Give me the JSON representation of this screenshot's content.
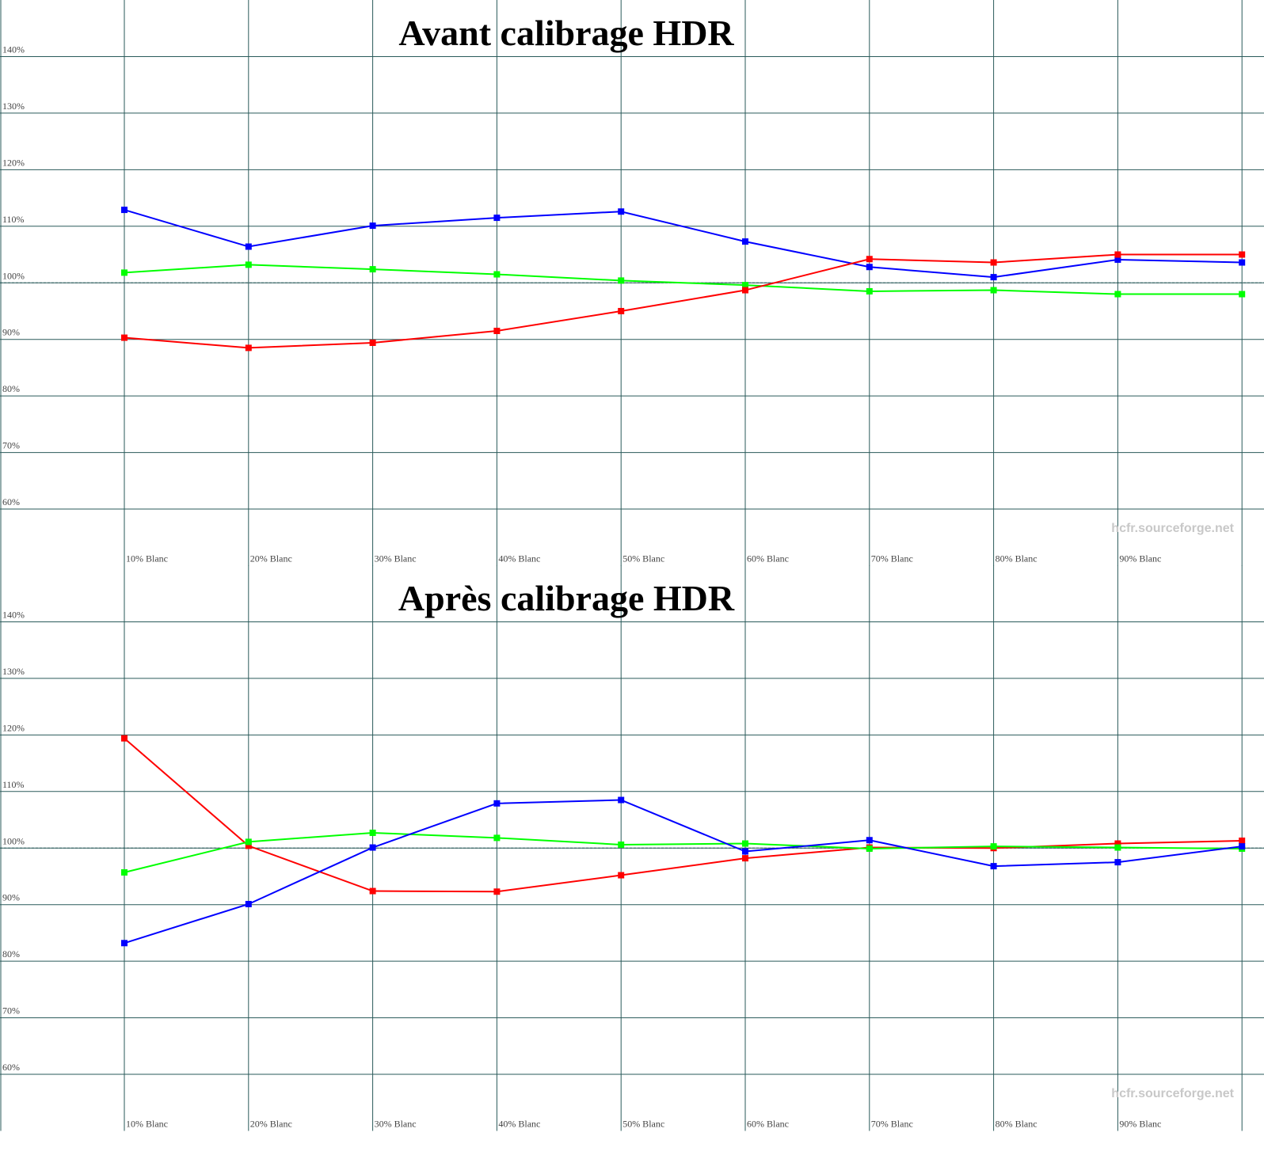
{
  "chart_data": [
    {
      "type": "line",
      "title": "Avant calibrage HDR",
      "watermark": "hcfr.sourceforge.net",
      "categories": [
        "10% Blanc",
        "20% Blanc",
        "30% Blanc",
        "40% Blanc",
        "50% Blanc",
        "60% Blanc",
        "70% Blanc",
        "80% Blanc",
        "90% Blanc",
        null
      ],
      "ylim": [
        50,
        150
      ],
      "yticks": [
        {
          "value": 60,
          "label": "60%"
        },
        {
          "value": 70,
          "label": "70%"
        },
        {
          "value": 80,
          "label": "80%"
        },
        {
          "value": 90,
          "label": "90%"
        },
        {
          "value": 100,
          "label": "100%"
        },
        {
          "value": 110,
          "label": "110%"
        },
        {
          "value": 120,
          "label": "120%"
        },
        {
          "value": 130,
          "label": "130%"
        },
        {
          "value": 140,
          "label": "140%"
        }
      ],
      "reference_line": 100,
      "grid": true,
      "series": [
        {
          "color": "#0000ff",
          "values": [
            112.9,
            106.4,
            110.1,
            111.5,
            112.6,
            107.3,
            102.8,
            101.0,
            104.1,
            103.6
          ]
        },
        {
          "color": "#00ff00",
          "values": [
            101.8,
            103.2,
            102.4,
            101.5,
            100.4,
            99.6,
            98.5,
            98.7,
            98.0,
            98.0
          ]
        },
        {
          "color": "#ff0000",
          "values": [
            90.3,
            88.5,
            89.4,
            91.5,
            95.0,
            98.7,
            104.2,
            103.6,
            105.0,
            105.0
          ]
        }
      ]
    },
    {
      "type": "line",
      "title": "Après calibrage HDR",
      "watermark": "hcfr.sourceforge.net",
      "categories": [
        "10% Blanc",
        "20% Blanc",
        "30% Blanc",
        "40% Blanc",
        "50% Blanc",
        "60% Blanc",
        "70% Blanc",
        "80% Blanc",
        "90% Blanc",
        null
      ],
      "ylim": [
        50,
        150
      ],
      "yticks": [
        {
          "value": 60,
          "label": "60%"
        },
        {
          "value": 70,
          "label": "70%"
        },
        {
          "value": 80,
          "label": "80%"
        },
        {
          "value": 90,
          "label": "90%"
        },
        {
          "value": 100,
          "label": "100%"
        },
        {
          "value": 110,
          "label": "110%"
        },
        {
          "value": 120,
          "label": "120%"
        },
        {
          "value": 130,
          "label": "130%"
        },
        {
          "value": 140,
          "label": "140%"
        }
      ],
      "reference_line": 100,
      "grid": true,
      "series": [
        {
          "color": "#ff0000",
          "values": [
            119.4,
            100.4,
            92.4,
            92.3,
            95.2,
            98.2,
            100.1,
            100.0,
            100.8,
            101.3
          ]
        },
        {
          "color": "#00ff00",
          "values": [
            95.7,
            101.1,
            102.7,
            101.8,
            100.6,
            100.8,
            99.9,
            100.3,
            100.1,
            99.9
          ]
        },
        {
          "color": "#0000ff",
          "values": [
            83.2,
            90.1,
            100.1,
            107.9,
            108.5,
            99.4,
            101.4,
            96.8,
            97.5,
            100.3
          ]
        }
      ]
    }
  ]
}
